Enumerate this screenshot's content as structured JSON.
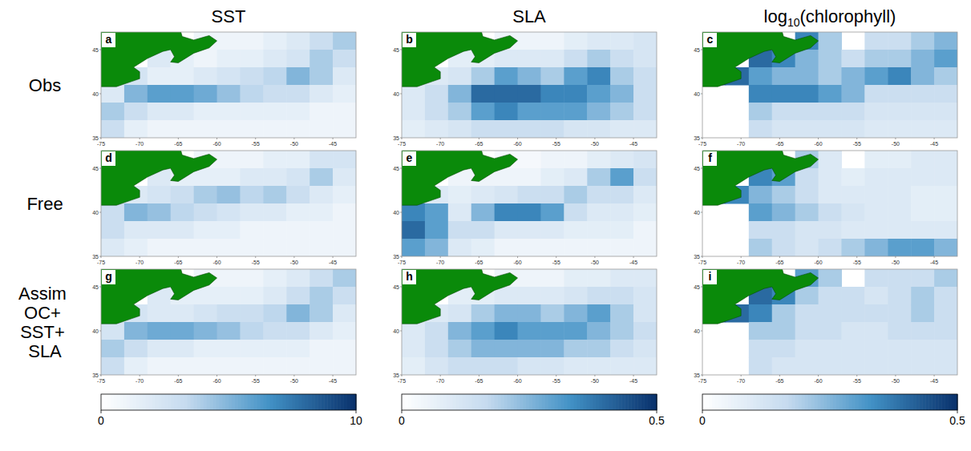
{
  "figure": {
    "column_titles": [
      "SST",
      "SLA",
      "log10(chlorophyll)"
    ],
    "row_labels": [
      "Obs",
      "Free",
      "Assim OC+ SST+ SLA"
    ],
    "colorbars": [
      {
        "range": [
          0,
          10
        ],
        "ticks": [
          0,
          10
        ]
      },
      {
        "range": [
          0,
          0.5
        ],
        "ticks": [
          0,
          0.5
        ]
      },
      {
        "range": [
          0,
          0.5
        ],
        "ticks": [
          0,
          0.5
        ]
      }
    ]
  },
  "chart_data": [
    {
      "type": "heatmap",
      "title": "a",
      "xlim": [
        -75,
        -42
      ],
      "ylim": [
        35,
        47
      ],
      "xticks": [
        -75,
        -70,
        -65,
        -60,
        -55,
        -50,
        -45
      ],
      "yticks": [
        35,
        40,
        45
      ],
      "cells": [
        [
          null,
          null,
          null,
          null,
          1,
          1,
          1,
          1.5,
          2,
          3,
          4
        ],
        [
          null,
          null,
          2,
          1.5,
          1,
          1.5,
          1.5,
          2,
          2.5,
          4,
          3
        ],
        [
          2,
          2.5,
          1.5,
          1.5,
          2,
          2.5,
          3,
          3.5,
          5,
          4,
          2
        ],
        [
          2,
          5,
          6,
          6,
          5.5,
          4.5,
          3.5,
          3,
          3,
          2,
          1.5
        ],
        [
          4,
          3,
          2,
          2,
          1.5,
          1.5,
          1.5,
          1.5,
          1.5,
          1,
          1
        ],
        [
          3,
          1.5,
          1,
          1,
          1,
          1,
          1,
          1,
          1,
          1,
          1
        ]
      ]
    },
    {
      "type": "heatmap",
      "title": "b",
      "xlim": [
        -75,
        -42
      ],
      "ylim": [
        35,
        47
      ],
      "xticks": [
        -75,
        -70,
        -65,
        -60,
        -55,
        -50,
        -45
      ],
      "yticks": [
        35,
        40,
        45
      ],
      "cells": [
        [
          null,
          null,
          null,
          null,
          0.05,
          0.05,
          0.05,
          0.08,
          0.1,
          0.1,
          0.12
        ],
        [
          null,
          null,
          0.08,
          0.08,
          0.1,
          0.1,
          0.1,
          0.15,
          0.2,
          0.15,
          0.12
        ],
        [
          0.08,
          0.1,
          0.12,
          0.2,
          0.3,
          0.25,
          0.2,
          0.3,
          0.35,
          0.2,
          0.15
        ],
        [
          0.1,
          0.15,
          0.25,
          0.4,
          0.4,
          0.4,
          0.35,
          0.35,
          0.3,
          0.25,
          0.15
        ],
        [
          0.1,
          0.15,
          0.2,
          0.3,
          0.35,
          0.3,
          0.3,
          0.3,
          0.25,
          0.2,
          0.15
        ],
        [
          0.08,
          0.1,
          0.12,
          0.15,
          0.15,
          0.15,
          0.15,
          0.12,
          0.12,
          0.1,
          0.1
        ]
      ]
    },
    {
      "type": "heatmap",
      "title": "c",
      "xlim": [
        -75,
        -42
      ],
      "ylim": [
        35,
        47
      ],
      "xticks": [
        -75,
        -70,
        -65,
        -60,
        -55,
        -50,
        -45
      ],
      "yticks": [
        35,
        40,
        45
      ],
      "cells": [
        [
          null,
          null,
          null,
          null,
          0.35,
          0.2,
          null,
          0.15,
          0.15,
          0.2,
          0.25
        ],
        [
          null,
          null,
          0.4,
          0.35,
          0.25,
          0.2,
          0.15,
          0.2,
          0.2,
          0.25,
          0.3
        ],
        [
          0.45,
          0.4,
          0.3,
          0.25,
          0.25,
          0.2,
          0.25,
          0.3,
          0.35,
          0.25,
          0.2
        ],
        [
          null,
          null,
          0.35,
          0.35,
          0.35,
          0.3,
          0.25,
          0.15,
          0.15,
          0.15,
          0.15
        ],
        [
          null,
          null,
          0.2,
          0.15,
          0.15,
          0.15,
          0.15,
          0.12,
          0.12,
          0.12,
          0.12
        ],
        [
          null,
          null,
          0.15,
          0.12,
          0.12,
          0.12,
          0.12,
          0.1,
          0.1,
          0.1,
          0.1
        ]
      ]
    },
    {
      "type": "heatmap",
      "title": "d",
      "xlim": [
        -75,
        -42
      ],
      "ylim": [
        35,
        47
      ],
      "xticks": [
        -75,
        -70,
        -65,
        -60,
        -55,
        -50,
        -45
      ],
      "yticks": [
        35,
        40,
        45
      ],
      "cells": [
        [
          null,
          null,
          null,
          null,
          1,
          1,
          1,
          1.5,
          1.5,
          2.5,
          2.5
        ],
        [
          null,
          null,
          2,
          1.5,
          1.5,
          1.5,
          2,
          2,
          2.5,
          4,
          2
        ],
        [
          2,
          2,
          2.5,
          3,
          4,
          4.5,
          3.5,
          4,
          3,
          2,
          1.5
        ],
        [
          3,
          5,
          4.5,
          3.5,
          3,
          2.5,
          2,
          2,
          1.5,
          1.5,
          1
        ],
        [
          3,
          2,
          2,
          2,
          1.5,
          1.5,
          1,
          1,
          1,
          1,
          1
        ],
        [
          2,
          1.5,
          1,
          1,
          1,
          1,
          1,
          1,
          1,
          1,
          1
        ]
      ]
    },
    {
      "type": "heatmap",
      "title": "e",
      "xlim": [
        -75,
        -42
      ],
      "ylim": [
        35,
        47
      ],
      "xticks": [
        -75,
        -70,
        -65,
        -60,
        -55,
        -50,
        -45
      ],
      "yticks": [
        35,
        40,
        45
      ],
      "cells": [
        [
          null,
          null,
          null,
          null,
          0.03,
          0.03,
          0.05,
          0.05,
          0.08,
          0.1,
          0.12
        ],
        [
          null,
          null,
          0.05,
          0.05,
          0.05,
          0.05,
          0.08,
          0.1,
          0.2,
          0.3,
          0.15
        ],
        [
          0.15,
          0.1,
          0.08,
          0.1,
          0.12,
          0.15,
          0.15,
          0.2,
          0.15,
          0.15,
          0.1
        ],
        [
          0.35,
          0.3,
          0.1,
          0.25,
          0.35,
          0.35,
          0.3,
          0.15,
          0.1,
          0.1,
          0.08
        ],
        [
          0.4,
          0.3,
          0.15,
          0.15,
          0.1,
          0.1,
          0.1,
          0.08,
          0.08,
          0.08,
          0.05
        ],
        [
          0.3,
          0.25,
          0.1,
          0.08,
          0.05,
          0.05,
          0.05,
          0.05,
          0.05,
          0.05,
          0.05
        ]
      ]
    },
    {
      "type": "heatmap",
      "title": "f",
      "xlim": [
        -75,
        -42
      ],
      "ylim": [
        35,
        47
      ],
      "xticks": [
        -75,
        -70,
        -65,
        -60,
        -55,
        -50,
        -45
      ],
      "yticks": [
        35,
        40,
        45
      ],
      "cells": [
        [
          null,
          null,
          null,
          null,
          0.2,
          0.1,
          null,
          0.08,
          0.08,
          0.1,
          0.1
        ],
        [
          null,
          null,
          0.35,
          0.3,
          0.15,
          0.1,
          0.08,
          0.1,
          0.1,
          0.1,
          0.1
        ],
        [
          0.4,
          0.35,
          0.25,
          0.2,
          0.15,
          0.1,
          0.1,
          0.1,
          0.1,
          0.08,
          0.08
        ],
        [
          null,
          null,
          0.3,
          0.25,
          0.2,
          0.15,
          0.12,
          0.1,
          0.1,
          0.08,
          0.08
        ],
        [
          null,
          null,
          0.15,
          0.15,
          0.12,
          0.12,
          0.1,
          0.1,
          0.1,
          0.1,
          0.1
        ],
        [
          null,
          null,
          0.2,
          0.15,
          0.12,
          0.15,
          0.2,
          0.25,
          0.3,
          0.3,
          0.25
        ]
      ]
    },
    {
      "type": "heatmap",
      "title": "g",
      "xlim": [
        -75,
        -42
      ],
      "ylim": [
        35,
        47
      ],
      "xticks": [
        -75,
        -70,
        -65,
        -60,
        -55,
        -50,
        -45
      ],
      "yticks": [
        35,
        40,
        45
      ],
      "cells": [
        [
          null,
          null,
          null,
          null,
          1,
          1,
          1,
          1.5,
          2,
          3,
          4
        ],
        [
          null,
          null,
          2,
          1.5,
          1.5,
          1.5,
          1.5,
          2,
          3,
          4,
          3
        ],
        [
          2,
          2.5,
          2,
          2,
          2.5,
          3,
          3,
          3.5,
          5,
          4,
          2
        ],
        [
          2.5,
          5,
          5.5,
          5.5,
          5,
          4.5,
          3.5,
          3,
          3,
          2,
          1.5
        ],
        [
          4,
          3,
          2,
          2,
          1.5,
          1.5,
          1.5,
          1.5,
          1.5,
          1,
          1
        ],
        [
          3,
          1.5,
          1,
          1,
          1,
          1,
          1,
          1,
          1,
          1,
          1
        ]
      ]
    },
    {
      "type": "heatmap",
      "title": "h",
      "xlim": [
        -75,
        -42
      ],
      "ylim": [
        35,
        47
      ],
      "xticks": [
        -75,
        -70,
        -65,
        -60,
        -55,
        -50,
        -45
      ],
      "yticks": [
        35,
        40,
        45
      ],
      "cells": [
        [
          null,
          null,
          null,
          null,
          0.05,
          0.05,
          0.05,
          0.08,
          0.08,
          0.1,
          0.1
        ],
        [
          null,
          null,
          0.08,
          0.08,
          0.1,
          0.1,
          0.1,
          0.12,
          0.15,
          0.15,
          0.12
        ],
        [
          0.08,
          0.1,
          0.12,
          0.2,
          0.25,
          0.25,
          0.2,
          0.25,
          0.3,
          0.2,
          0.12
        ],
        [
          0.1,
          0.15,
          0.25,
          0.3,
          0.35,
          0.3,
          0.3,
          0.3,
          0.25,
          0.2,
          0.15
        ],
        [
          0.1,
          0.15,
          0.2,
          0.25,
          0.25,
          0.25,
          0.25,
          0.2,
          0.2,
          0.15,
          0.12
        ],
        [
          0.08,
          0.12,
          0.15,
          0.15,
          0.15,
          0.12,
          0.12,
          0.1,
          0.1,
          0.1,
          0.1
        ]
      ]
    },
    {
      "type": "heatmap",
      "title": "i",
      "xlim": [
        -75,
        -42
      ],
      "ylim": [
        35,
        47
      ],
      "xticks": [
        -75,
        -70,
        -65,
        -60,
        -55,
        -50,
        -45
      ],
      "yticks": [
        35,
        40,
        45
      ],
      "cells": [
        [
          null,
          null,
          null,
          null,
          0.3,
          0.2,
          null,
          0.15,
          0.15,
          0.15,
          0.2
        ],
        [
          null,
          null,
          0.4,
          0.35,
          0.2,
          0.15,
          0.15,
          0.12,
          0.15,
          0.2,
          0.15
        ],
        [
          0.45,
          0.4,
          0.35,
          0.2,
          0.15,
          0.15,
          0.15,
          0.15,
          0.15,
          0.2,
          0.15
        ],
        [
          null,
          null,
          0.2,
          0.2,
          0.15,
          0.15,
          0.12,
          0.12,
          0.15,
          0.15,
          0.15
        ],
        [
          null,
          null,
          0.15,
          0.15,
          0.12,
          0.12,
          0.12,
          0.12,
          0.12,
          0.12,
          0.12
        ],
        [
          null,
          null,
          0.15,
          0.12,
          0.12,
          0.12,
          0.12,
          0.12,
          0.12,
          0.12,
          0.12
        ]
      ]
    }
  ]
}
